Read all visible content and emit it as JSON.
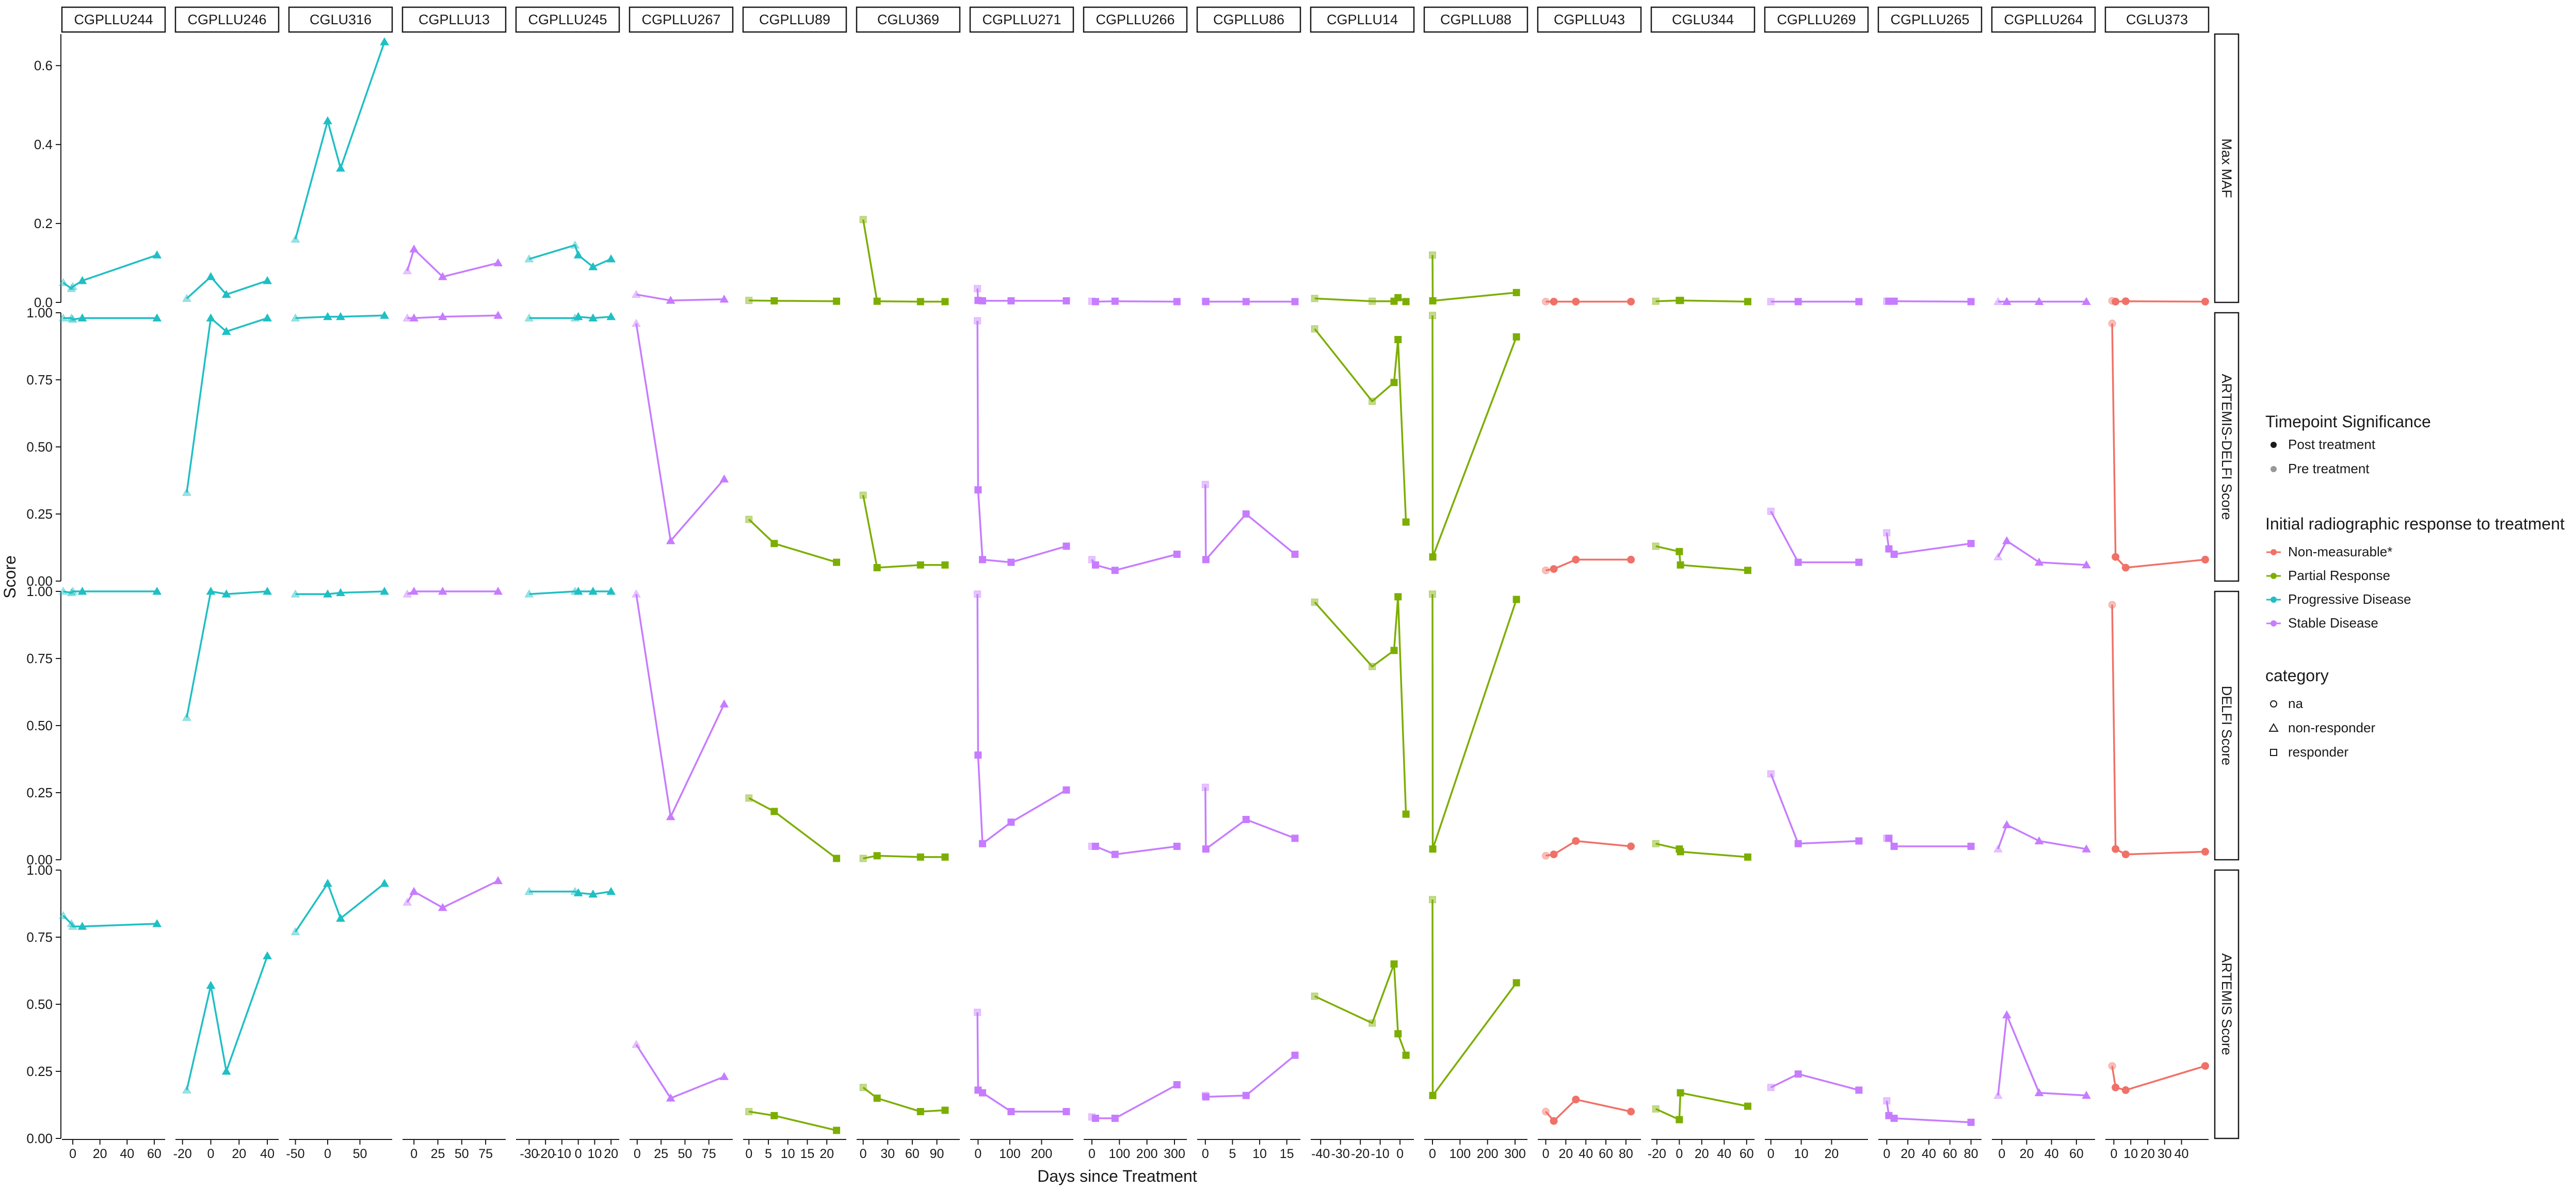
{
  "chart_data": {
    "type": "line",
    "xlabel": "Days since Treatment",
    "ylabel": "Score",
    "rows": [
      "Max MAF",
      "ARTEMIS-DELFI Score",
      "DELFI Score",
      "ARTEMIS Score"
    ],
    "row_ylims": [
      [
        0,
        0.68
      ],
      [
        0,
        1.0
      ],
      [
        0,
        1.0
      ],
      [
        0,
        1.0
      ]
    ],
    "row_yticks": [
      [
        0.0,
        0.2,
        0.4,
        0.6
      ],
      [
        0.0,
        0.25,
        0.5,
        0.75,
        1.0
      ],
      [
        0.0,
        0.25,
        0.5,
        0.75,
        1.0
      ],
      [
        0.0,
        0.25,
        0.5,
        0.75,
        1.0
      ]
    ],
    "row_ytick_labels": [
      [
        "0.0",
        "0.2",
        "0.4",
        "0.6"
      ],
      [
        "0.00",
        "0.25",
        "0.50",
        "0.75",
        "1.00"
      ],
      [
        "0.00",
        "0.25",
        "0.50",
        "0.75",
        "1.00"
      ],
      [
        "0.00",
        "0.25",
        "0.50",
        "0.75",
        "1.00"
      ]
    ],
    "response_colors": {
      "Non-measurable*": "#F07167",
      "Partial Response": "#7CAE00",
      "Progressive Disease": "#1FBFC4",
      "Stable Disease": "#C77CFF"
    },
    "legend": {
      "timepoint_title": "Timepoint Significance",
      "timepoint_items": [
        "Post treatment",
        "Pre treatment"
      ],
      "response_title": "Initial radiographic response to treatment",
      "response_items": [
        "Non-measurable*",
        "Partial Response",
        "Progressive Disease",
        "Stable Disease"
      ],
      "category_title": "category",
      "category_items": [
        "na",
        "non-responder",
        "responder"
      ]
    },
    "panels": [
      {
        "id": "CGPLLU244",
        "response": "Progressive Disease",
        "category": "non-responder",
        "xlim": [
          -8,
          68
        ],
        "xticks": [
          0,
          20,
          40,
          60
        ],
        "x": [
          -7,
          -1,
          0,
          7,
          62
        ],
        "pre": 3,
        "series": [
          [
            0.05,
            0.035,
            0.04,
            0.055,
            0.12
          ],
          [
            0.98,
            0.98,
            0.975,
            0.98,
            0.98
          ],
          [
            1.0,
            0.995,
            1.0,
            1.0,
            1.0
          ],
          [
            0.83,
            0.8,
            0.79,
            0.79,
            0.8
          ]
        ]
      },
      {
        "id": "CGPLLU246",
        "response": "Progressive Disease",
        "category": "non-responder",
        "xlim": [
          -25,
          48
        ],
        "xticks": [
          -20,
          0,
          20,
          40
        ],
        "x": [
          -17,
          0,
          11,
          40
        ],
        "pre": 1,
        "series": [
          [
            0.01,
            0.065,
            0.02,
            0.055
          ],
          [
            0.33,
            0.98,
            0.93,
            0.98
          ],
          [
            0.53,
            1.0,
            0.99,
            1.0
          ],
          [
            0.18,
            0.57,
            0.25,
            0.68
          ]
        ]
      },
      {
        "id": "CGLU316",
        "response": "Progressive Disease",
        "category": "non-responder",
        "xlim": [
          -60,
          100
        ],
        "xticks": [
          -50,
          0,
          50
        ],
        "x": [
          -50,
          0,
          20,
          88
        ],
        "pre": 1,
        "series": [
          [
            0.16,
            0.46,
            0.34,
            0.66
          ],
          [
            0.98,
            0.985,
            0.985,
            0.99
          ],
          [
            0.99,
            0.99,
            0.995,
            1.0
          ],
          [
            0.77,
            0.95,
            0.82,
            0.95
          ]
        ]
      },
      {
        "id": "CGPLLU13",
        "response": "Stable Disease",
        "category": "non-responder",
        "xlim": [
          -12,
          96
        ],
        "xticks": [
          0,
          25,
          50,
          75
        ],
        "x": [
          -7,
          0,
          30,
          88
        ],
        "pre": 1,
        "series": [
          [
            0.08,
            0.135,
            0.065,
            0.1
          ],
          [
            0.98,
            0.98,
            0.985,
            0.99
          ],
          [
            0.99,
            1.0,
            1.0,
            1.0
          ],
          [
            0.88,
            0.92,
            0.86,
            0.96
          ]
        ]
      },
      {
        "id": "CGPLLU245",
        "response": "Progressive Disease",
        "category": "non-responder",
        "xlim": [
          -38,
          25
        ],
        "xticks": [
          -30,
          -20,
          -10,
          0,
          10,
          20
        ],
        "x": [
          -30,
          -2,
          0,
          9,
          20
        ],
        "pre": 2,
        "series": [
          [
            0.11,
            0.145,
            0.12,
            0.09,
            0.11
          ],
          [
            0.98,
            0.98,
            0.985,
            0.98,
            0.985
          ],
          [
            0.99,
            1.0,
            1.0,
            1.0,
            1.0
          ],
          [
            0.92,
            0.92,
            0.915,
            0.91,
            0.92
          ]
        ]
      },
      {
        "id": "CGPLLU267",
        "response": "Stable Disease",
        "category": "non-responder",
        "xlim": [
          -8,
          100
        ],
        "xticks": [
          0,
          25,
          50,
          75
        ],
        "x": [
          -1,
          35,
          91
        ],
        "pre": 1,
        "series": [
          [
            0.02,
            0.005,
            0.008
          ],
          [
            0.96,
            0.15,
            0.38
          ],
          [
            0.99,
            0.16,
            0.58
          ],
          [
            0.35,
            0.15,
            0.23
          ]
        ]
      },
      {
        "id": "CGPLLU89",
        "response": "Partial Response",
        "category": "responder",
        "xlim": [
          -1.5,
          25
        ],
        "xticks": [
          0,
          5,
          10,
          15,
          20
        ],
        "x": [
          0,
          6.5,
          22.5
        ],
        "pre": 1,
        "series": [
          [
            0.005,
            0.004,
            0.003
          ],
          [
            0.23,
            0.14,
            0.07
          ],
          [
            0.23,
            0.18,
            0.005
          ],
          [
            0.1,
            0.085,
            0.03
          ]
        ]
      },
      {
        "id": "CGLU369",
        "response": "Partial Response",
        "category": "responder",
        "xlim": [
          -8,
          118
        ],
        "xticks": [
          0,
          30,
          60,
          90
        ],
        "x": [
          0,
          17,
          70,
          100
        ],
        "pre": 1,
        "series": [
          [
            0.21,
            0.003,
            0.002,
            0.002
          ],
          [
            0.32,
            0.05,
            0.06,
            0.06
          ],
          [
            0.005,
            0.015,
            0.01,
            0.01
          ],
          [
            0.19,
            0.15,
            0.1,
            0.105
          ]
        ]
      },
      {
        "id": "CGPLLU271",
        "response": "Stable Disease",
        "category": "responder",
        "xlim": [
          -25,
          300
        ],
        "xticks": [
          0,
          100,
          200
        ],
        "x": [
          -2,
          0,
          14,
          104,
          278
        ],
        "pre": 1,
        "series": [
          [
            0.035,
            0.005,
            0.004,
            0.004,
            0.004
          ],
          [
            0.97,
            0.34,
            0.08,
            0.07,
            0.13
          ],
          [
            0.99,
            0.39,
            0.06,
            0.14,
            0.26
          ],
          [
            0.47,
            0.18,
            0.17,
            0.1,
            0.1
          ]
        ]
      },
      {
        "id": "CGPLLU266",
        "response": "Stable Disease",
        "category": "responder",
        "xlim": [
          -30,
          345
        ],
        "xticks": [
          0,
          100,
          200,
          300
        ],
        "x": [
          0,
          13,
          84,
          309
        ],
        "pre": 1,
        "series": [
          [
            0.003,
            0.002,
            0.003,
            0.002
          ],
          [
            0.08,
            0.06,
            0.04,
            0.1
          ],
          [
            0.05,
            0.05,
            0.02,
            0.05
          ],
          [
            0.08,
            0.075,
            0.075,
            0.2
          ]
        ]
      },
      {
        "id": "CGPLLU86",
        "response": "Stable Disease",
        "category": "responder",
        "xlim": [
          -1.5,
          17.5
        ],
        "xticks": [
          0,
          5,
          10,
          15
        ],
        "x": [
          0,
          0.1,
          7.5,
          16.5
        ],
        "pre": 1,
        "series": [
          [
            0.003,
            0.002,
            0.002,
            0.002
          ],
          [
            0.36,
            0.08,
            0.25,
            0.1
          ],
          [
            0.27,
            0.04,
            0.15,
            0.08
          ],
          [
            0.16,
            0.155,
            0.16,
            0.31
          ]
        ]
      },
      {
        "id": "CGPLLU14",
        "response": "Partial Response",
        "category": "responder",
        "xlim": [
          -45,
          7
        ],
        "xticks": [
          -40,
          -30,
          -20,
          -10,
          0
        ],
        "x": [
          -43,
          -14,
          -3,
          -1,
          3
        ],
        "pre": 2,
        "series": [
          [
            0.01,
            0.003,
            0.003,
            0.012,
            0.002
          ],
          [
            0.94,
            0.67,
            0.74,
            0.9,
            0.22
          ],
          [
            0.96,
            0.72,
            0.78,
            0.98,
            0.17
          ],
          [
            0.53,
            0.43,
            0.65,
            0.39,
            0.31
          ]
        ]
      },
      {
        "id": "CGPLLU88",
        "response": "Partial Response",
        "category": "responder",
        "xlim": [
          -30,
          345
        ],
        "xticks": [
          0,
          100,
          200,
          300
        ],
        "x": [
          0,
          1,
          305
        ],
        "pre": 1,
        "series": [
          [
            0.12,
            0.004,
            0.025
          ],
          [
            0.99,
            0.09,
            0.91
          ],
          [
            0.99,
            0.04,
            0.97
          ],
          [
            0.89,
            0.16,
            0.58
          ]
        ]
      },
      {
        "id": "CGPLLU43",
        "response": "Non-measurable*",
        "category": "na",
        "xlim": [
          -8,
          95
        ],
        "xticks": [
          0,
          20,
          40,
          60,
          80
        ],
        "x": [
          0,
          8,
          30,
          85
        ],
        "pre": 1,
        "series": [
          [
            0.002,
            0.002,
            0.002,
            0.002
          ],
          [
            0.04,
            0.045,
            0.08,
            0.08
          ],
          [
            0.015,
            0.02,
            0.07,
            0.05
          ],
          [
            0.1,
            0.065,
            0.145,
            0.1
          ]
        ]
      },
      {
        "id": "CGLU344",
        "response": "Partial Response",
        "category": "responder",
        "xlim": [
          -25,
          67
        ],
        "xticks": [
          -20,
          0,
          20,
          40,
          60
        ],
        "x": [
          -21,
          0,
          1,
          61
        ],
        "pre": 1,
        "series": [
          [
            0.003,
            0.005,
            0.005,
            0.002
          ],
          [
            0.13,
            0.11,
            0.06,
            0.04
          ],
          [
            0.06,
            0.04,
            0.03,
            0.01
          ],
          [
            0.11,
            0.07,
            0.17,
            0.12
          ]
        ]
      },
      {
        "id": "CGPLLU269",
        "response": "Stable Disease",
        "category": "responder",
        "xlim": [
          -2,
          32
        ],
        "xticks": [
          0,
          10,
          20
        ],
        "x": [
          0,
          9,
          29
        ],
        "pre": 1,
        "series": [
          [
            0.002,
            0.002,
            0.002
          ],
          [
            0.26,
            0.07,
            0.07
          ],
          [
            0.32,
            0.06,
            0.07
          ],
          [
            0.19,
            0.24,
            0.18
          ]
        ]
      },
      {
        "id": "CGPLLU265",
        "response": "Stable Disease",
        "category": "responder",
        "xlim": [
          -8,
          90
        ],
        "xticks": [
          0,
          20,
          40,
          60,
          80
        ],
        "x": [
          0,
          2,
          7,
          80
        ],
        "pre": 1,
        "series": [
          [
            0.003,
            0.003,
            0.003,
            0.002
          ],
          [
            0.18,
            0.12,
            0.1,
            0.14
          ],
          [
            0.08,
            0.08,
            0.05,
            0.05
          ],
          [
            0.14,
            0.085,
            0.075,
            0.06
          ]
        ]
      },
      {
        "id": "CGPLLU264",
        "response": "Stable Disease",
        "category": "non-responder",
        "xlim": [
          -8,
          75
        ],
        "xticks": [
          0,
          20,
          40,
          60
        ],
        "x": [
          -3,
          4,
          30,
          68
        ],
        "pre": 1,
        "series": [
          [
            0.002,
            0.002,
            0.002,
            0.002
          ],
          [
            0.09,
            0.15,
            0.07,
            0.06
          ],
          [
            0.04,
            0.13,
            0.07,
            0.04
          ],
          [
            0.16,
            0.46,
            0.17,
            0.16
          ]
        ]
      },
      {
        "id": "CGLU373",
        "response": "Non-measurable*",
        "category": "na",
        "xlim": [
          -5,
          56
        ],
        "xticks": [
          0,
          10,
          20,
          30,
          40
        ],
        "x": [
          -1,
          1,
          7,
          54
        ],
        "pre": 1,
        "series": [
          [
            0.004,
            0.002,
            0.003,
            0.002
          ],
          [
            0.96,
            0.09,
            0.05,
            0.08
          ],
          [
            0.95,
            0.04,
            0.02,
            0.03
          ],
          [
            0.27,
            0.19,
            0.18,
            0.27
          ]
        ]
      }
    ]
  }
}
